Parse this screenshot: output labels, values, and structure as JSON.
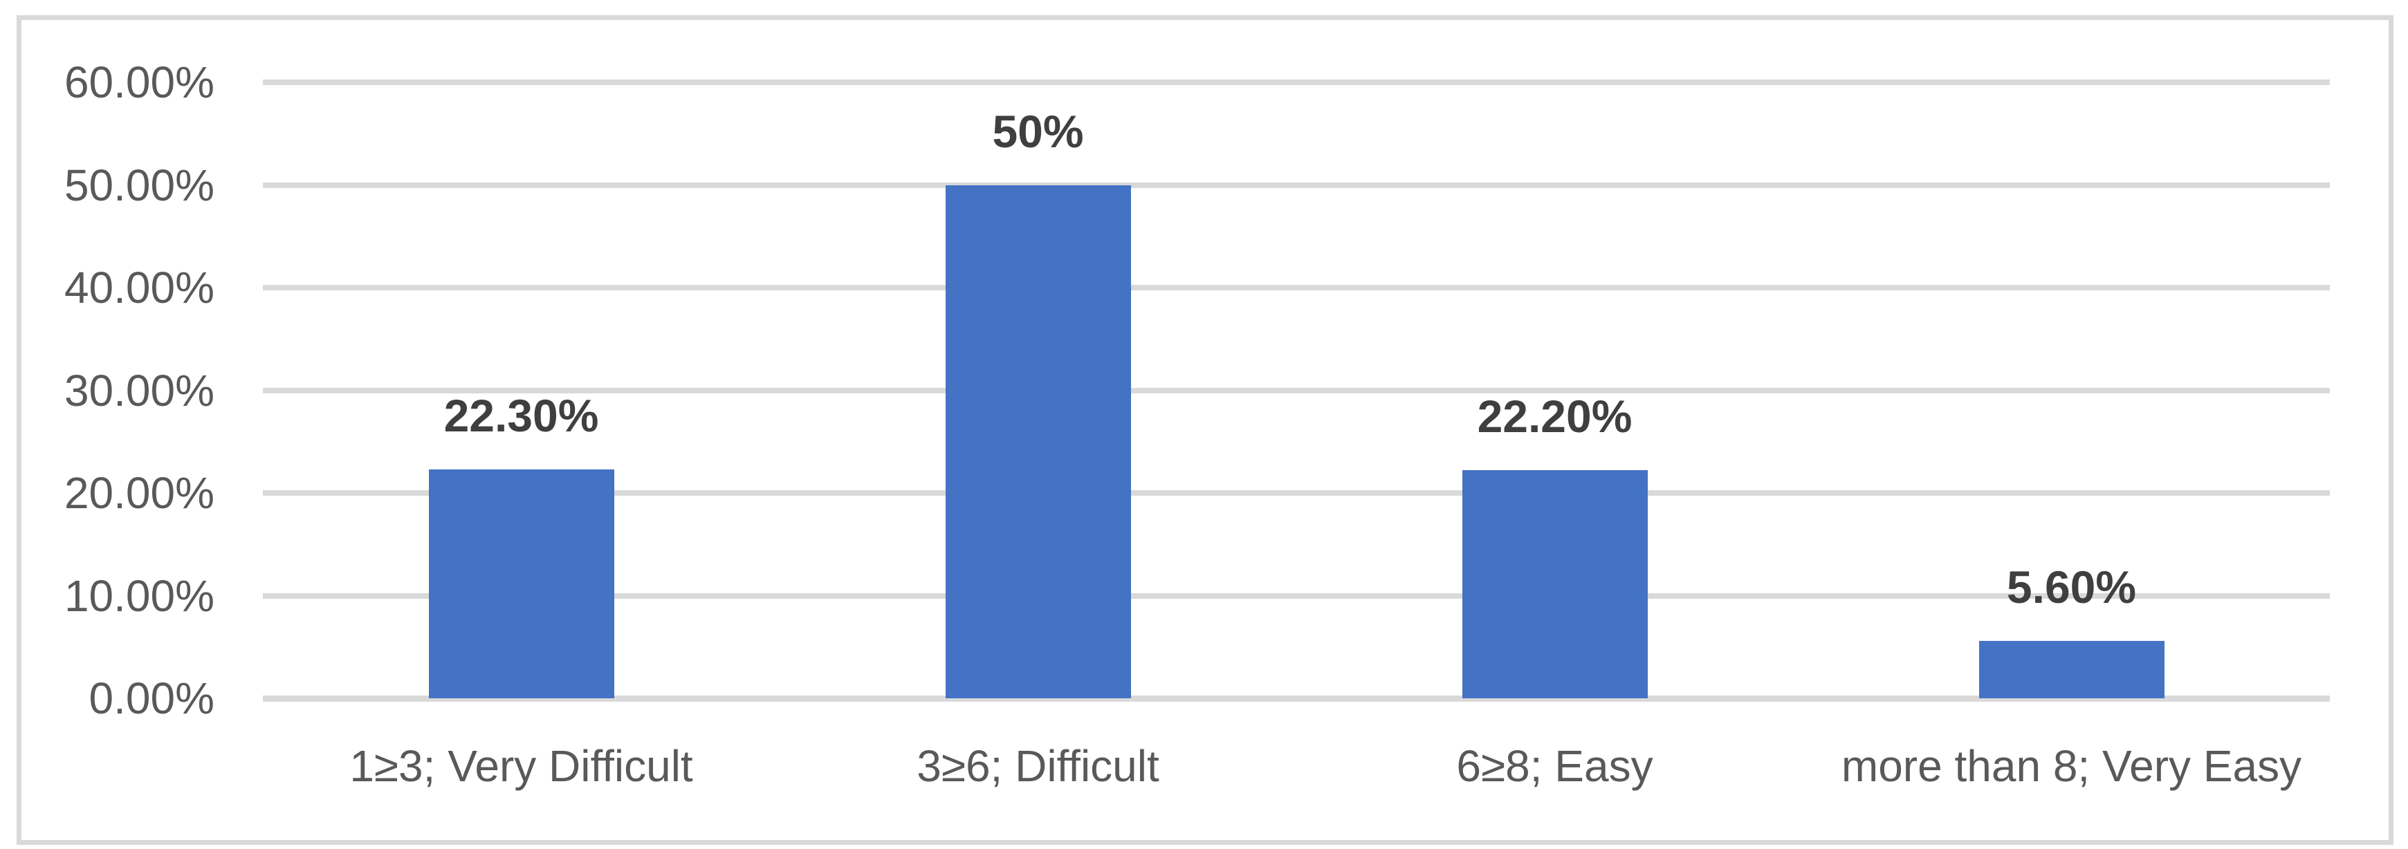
{
  "chart_data": {
    "type": "bar",
    "title": "",
    "categories": [
      "1≥3; Very Difficult",
      "3≥6; Difficult",
      "6≥8; Easy",
      "more than 8; Very Easy"
    ],
    "values": [
      22.3,
      50,
      22.2,
      5.6
    ],
    "data_labels": [
      "22.30%",
      "50%",
      "22.20%",
      "5.60%"
    ],
    "y_ticks": [
      "60.00%",
      "50.00%",
      "40.00%",
      "30.00%",
      "20.00%",
      "10.00%",
      "0.00%"
    ],
    "y_tick_values": [
      60,
      50,
      40,
      30,
      20,
      10,
      0
    ],
    "xlabel": "",
    "ylabel": "",
    "ylim": [
      0,
      60
    ],
    "grid": true,
    "legend_position": "none",
    "colors": {
      "bar": "#4472C4",
      "gridline": "#D9D9D9",
      "frame_border": "#D9D9D9",
      "axis_tick_label": "#595959",
      "category_label": "#595959",
      "data_label": "#3F3F3F",
      "background": "#FFFFFF"
    }
  }
}
